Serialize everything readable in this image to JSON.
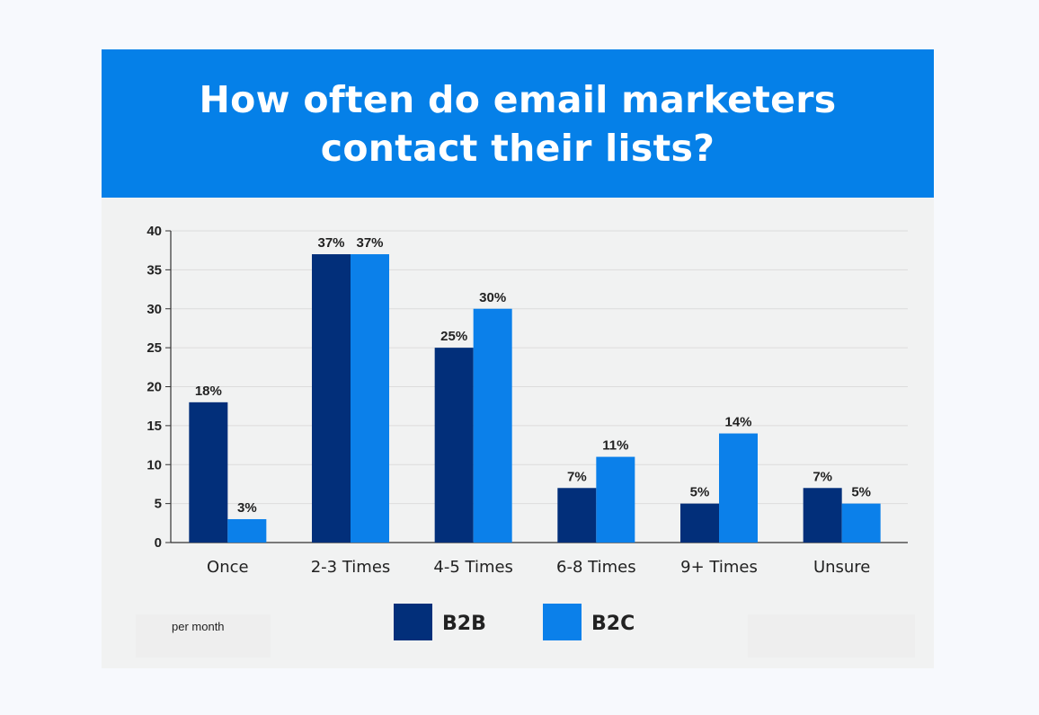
{
  "banner": {
    "title_line1": "How often do email marketers",
    "title_line2": "contact their lists?",
    "color": "#0580e8"
  },
  "note": "per month",
  "chart_data": {
    "type": "bar",
    "categories": [
      "Once",
      "2-3 Times",
      "4-5 Times",
      "6-8 Times",
      "9+ Times",
      "Unsure"
    ],
    "series": [
      {
        "name": "B2B",
        "color": "#022f7a",
        "values": [
          18,
          37,
          25,
          7,
          5,
          7
        ],
        "labels": [
          "18%",
          "37%",
          "25%",
          "7%",
          "5%",
          "7%"
        ]
      },
      {
        "name": "B2C",
        "color": "#0b80ea",
        "values": [
          3,
          37,
          30,
          11,
          14,
          5
        ],
        "labels": [
          "3%",
          "37%",
          "30%",
          "11%",
          "14%",
          "5%"
        ]
      }
    ],
    "ylim": [
      0,
      40
    ],
    "yticks": [
      0,
      5,
      10,
      15,
      20,
      25,
      30,
      35,
      40
    ],
    "grid": true,
    "legend": "bottom-center"
  }
}
